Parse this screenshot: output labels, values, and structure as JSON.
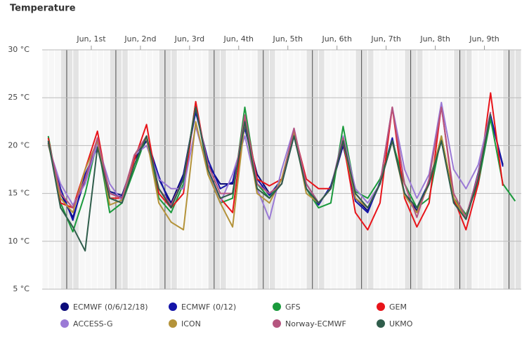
{
  "chart_data": {
    "type": "line",
    "title": "Temperature",
    "x": [
      0.625,
      0.875,
      1.125,
      1.375,
      1.625,
      1.875,
      2.125,
      2.375,
      2.625,
      2.875,
      3.125,
      3.375,
      3.625,
      3.875,
      4.125,
      4.375,
      4.625,
      4.875,
      5.125,
      5.375,
      5.625,
      5.875,
      6.125,
      6.375,
      6.625,
      6.875,
      7.125,
      7.375,
      7.625,
      7.875,
      8.125,
      8.375,
      8.625,
      8.875,
      9.125,
      9.375,
      9.625,
      9.875,
      10.125
    ],
    "xlim": [
      0.5,
      10.25
    ],
    "xticks": [
      {
        "value": 1.5,
        "label": "Jun, 1st"
      },
      {
        "value": 2.5,
        "label": "Jun, 2nd"
      },
      {
        "value": 3.5,
        "label": "Jun, 3rd"
      },
      {
        "value": 4.5,
        "label": "Jun, 4th"
      },
      {
        "value": 5.5,
        "label": "Jun, 5th"
      },
      {
        "value": 6.5,
        "label": "Jun, 6th"
      },
      {
        "value": 7.5,
        "label": "Jun, 7th"
      },
      {
        "value": 8.5,
        "label": "Jun, 8th"
      },
      {
        "value": 9.5,
        "label": "Jun, 9th"
      }
    ],
    "ylim": [
      5,
      30
    ],
    "yticks": [
      {
        "value": 5,
        "label": "5 °C"
      },
      {
        "value": 10,
        "label": "10 °C"
      },
      {
        "value": 15,
        "label": "15 °C"
      },
      {
        "value": 20,
        "label": "20 °C"
      },
      {
        "value": 25,
        "label": "25 °C"
      },
      {
        "value": 30,
        "label": "30 °C"
      }
    ],
    "grid": true,
    "series": [
      {
        "name": "ECMWF (0/6/12/18)",
        "color": "#0c0c7a",
        "values": [
          20.3,
          15,
          12.5,
          16.5,
          20,
          15.2,
          14.8,
          18.5,
          20.5,
          16.5,
          14,
          17,
          23.8,
          18,
          16,
          16,
          22,
          17,
          15,
          16,
          21,
          16,
          14,
          15.5,
          20,
          14.5,
          13.2,
          16,
          20.5,
          15,
          13.2,
          16,
          20.5,
          14.5,
          12.5,
          17,
          23,
          18,
          null
        ]
      },
      {
        "name": "ECMWF (0/12)",
        "color": "#1414a8",
        "values": [
          20.2,
          15.5,
          12.2,
          17,
          19.8,
          15,
          14.6,
          18.8,
          20.8,
          16.8,
          13.5,
          16.8,
          23.5,
          18.5,
          15.5,
          16.2,
          21.8,
          16.5,
          14.8,
          16.5,
          21.2,
          15.5,
          13.8,
          15.8,
          20.2,
          14.2,
          13,
          16.2,
          20.8,
          14.8,
          13.5,
          16.2,
          20.8,
          14.2,
          12.3,
          17.2,
          23.2,
          17.8,
          null
        ]
      },
      {
        "name": "GFS",
        "color": "#1a9a3c",
        "values": [
          21,
          14,
          11,
          15,
          20.5,
          13,
          14,
          17.5,
          21,
          14.5,
          13,
          16,
          24.5,
          17,
          14,
          14.5,
          24,
          16,
          14.5,
          16.5,
          21.5,
          15.5,
          13.5,
          14,
          22,
          15.2,
          14.5,
          16.5,
          20.5,
          16,
          13.5,
          14.5,
          21,
          14.5,
          12.8,
          16,
          22.8,
          16,
          14.2
        ]
      },
      {
        "name": "GEM",
        "color": "#e8141a",
        "values": [
          20.8,
          14,
          13.5,
          17.5,
          21.5,
          14.5,
          14.5,
          18.5,
          22.2,
          15,
          13.5,
          15,
          24.6,
          17.5,
          14.5,
          13,
          23,
          16.5,
          15.8,
          16.5,
          21.5,
          16.5,
          15.5,
          15.5,
          20.5,
          13,
          11.2,
          14,
          24,
          14.5,
          11.5,
          14,
          24.2,
          14.5,
          11.2,
          16,
          25.5,
          15.8,
          null
        ]
      },
      {
        "name": "ACCESS-G",
        "color": "#9b7ad6",
        "values": [
          20,
          16,
          13.8,
          16,
          20.2,
          16,
          14.2,
          19,
          20,
          16.5,
          15.5,
          15.5,
          22,
          17.5,
          14,
          17,
          21,
          15.5,
          12.3,
          17.5,
          21.8,
          15.5,
          14,
          15.5,
          21,
          15.5,
          14,
          16,
          24,
          17.5,
          14.5,
          17,
          24.5,
          17.5,
          15.5,
          18,
          23.5,
          null,
          null
        ]
      },
      {
        "name": "ICON",
        "color": "#b4933a",
        "values": [
          20.2,
          14.5,
          13,
          17.5,
          20.5,
          13.8,
          14.3,
          19,
          20.8,
          14,
          12,
          11.2,
          22.5,
          17,
          14,
          11.5,
          22.5,
          15,
          14,
          16.5,
          21.5,
          15,
          14,
          15.5,
          20.5,
          14.5,
          13.5,
          16,
          20.5,
          14.8,
          13,
          16,
          21,
          14.5,
          12.3,
          17,
          23.2,
          null,
          null
        ]
      },
      {
        "name": "Norway-ECMWF",
        "color": "#b5557f",
        "values": [
          20.5,
          15,
          13.5,
          16.5,
          20.8,
          15,
          14.5,
          19,
          21,
          15.5,
          13.8,
          16.5,
          24,
          18,
          15,
          15,
          23.2,
          16,
          15,
          16,
          21.8,
          16,
          14,
          15.5,
          20.8,
          15,
          13.5,
          16,
          24,
          16,
          12.5,
          16.5,
          24,
          15,
          12.5,
          17,
          23.5,
          null,
          null
        ]
      },
      {
        "name": "UKMO",
        "color": "#2f5d4b",
        "values": [
          20.5,
          13.5,
          11.5,
          9,
          19.8,
          14.5,
          14,
          18,
          21,
          15.5,
          13.5,
          16.5,
          24,
          17.5,
          14.5,
          15,
          22.5,
          15.5,
          14.5,
          16,
          21,
          15.5,
          14,
          15.5,
          20.5,
          15,
          13.5,
          16,
          20.5,
          15,
          13.5,
          16,
          20.5,
          14,
          12.3,
          16.5,
          23.3,
          null,
          null
        ]
      }
    ]
  }
}
